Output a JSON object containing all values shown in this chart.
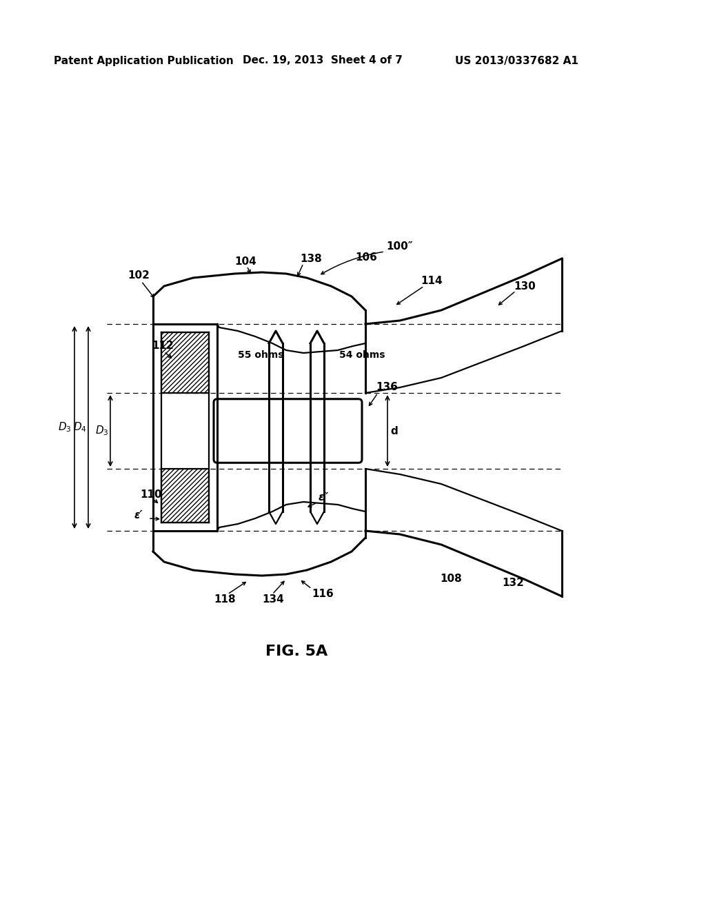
{
  "bg_color": "#ffffff",
  "header_left": "Patent Application Publication",
  "header_mid": "Dec. 19, 2013  Sheet 4 of 7",
  "header_right": "US 2013/0337682 A1",
  "fig_label": "FIG. 5A",
  "lw": 1.6,
  "lwt": 2.2,
  "labels": {
    "100pp": "100″",
    "102": "102",
    "104": "104",
    "106": "106",
    "108": "108",
    "110": "110",
    "112": "112",
    "114": "114",
    "116": "116",
    "118": "118",
    "130": "130",
    "132": "132",
    "134": "134",
    "136": "136",
    "138": "138",
    "55ohms": "55 ohms",
    "54ohms": "54 ohms",
    "eps_prime": "ε′",
    "eps_dbl": "ε″",
    "d": "d"
  }
}
